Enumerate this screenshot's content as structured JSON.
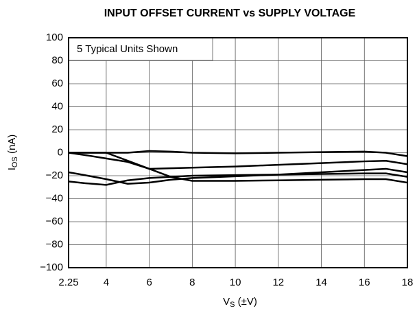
{
  "chart_data": {
    "type": "line",
    "title": "INPUT OFFSET CURRENT vs SUPPLY VOLTAGE",
    "annotation": "5 Typical Units Shown",
    "xlabel": {
      "main": "V",
      "sub": "S",
      "rest": " (±V)"
    },
    "ylabel": {
      "main": "I",
      "sub": "OS",
      "rest": " (nA)"
    },
    "x": [
      2.25,
      3,
      4,
      5,
      6,
      7,
      8,
      10,
      12,
      14,
      16,
      17,
      18
    ],
    "series": [
      {
        "color": "#000000",
        "values": [
          0,
          0,
          0,
          0,
          1.5,
          1,
          0,
          -0.5,
          0,
          0.5,
          1,
          0,
          -3
        ]
      },
      {
        "color": "#000000",
        "values": [
          0,
          -2,
          -5,
          -8,
          -14,
          -13.5,
          -13,
          -12,
          -10.5,
          -9,
          -7.5,
          -7,
          -10
        ]
      },
      {
        "color": "#000000",
        "values": [
          0,
          0,
          0,
          -7,
          -14,
          -21,
          -24.5,
          -24.5,
          -24,
          -23.5,
          -23,
          -23,
          -26
        ]
      },
      {
        "color": "#000000",
        "values": [
          -17,
          -19.5,
          -23,
          -27,
          -26,
          -23.5,
          -22,
          -20.5,
          -19,
          -17,
          -15,
          -14,
          -17
        ]
      },
      {
        "color": "#000000",
        "values": [
          -25,
          -26.5,
          -28,
          -24,
          -22,
          -21,
          -20,
          -19.5,
          -19,
          -18.5,
          -18,
          -18,
          -21
        ]
      }
    ],
    "xlim": [
      2.25,
      18
    ],
    "xticks": [
      2.25,
      4,
      6,
      8,
      10,
      12,
      14,
      16,
      18
    ],
    "ylim": [
      -100,
      100
    ],
    "yticks": [
      {
        "value": -100,
        "label": "−100"
      },
      {
        "value": -80,
        "label": "−80"
      },
      {
        "value": -60,
        "label": "−60"
      },
      {
        "value": -40,
        "label": "−40"
      },
      {
        "value": -20,
        "label": "−20"
      },
      0,
      20,
      40,
      60,
      80,
      100
    ],
    "grid": true
  }
}
